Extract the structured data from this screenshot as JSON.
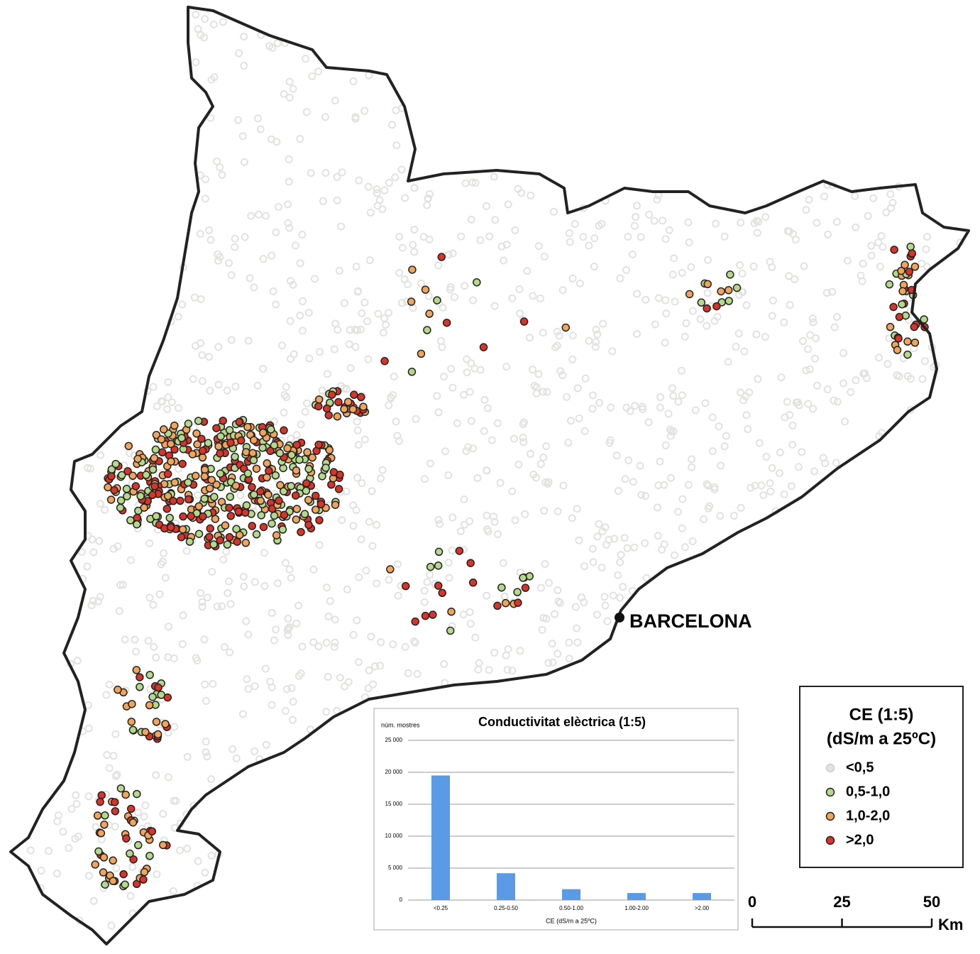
{
  "map": {
    "city_label": "BARCELONA"
  },
  "legend": {
    "title_line1": "CE (1:5)",
    "title_line2": "(dS/m a 25ºC)",
    "items": [
      {
        "label": "<0,5",
        "color": "#e2e2e0"
      },
      {
        "label": "0,5-1,0",
        "color": "#b5d98a"
      },
      {
        "label": "1,0-2,0",
        "color": "#f0a45c"
      },
      {
        "label": ">2,0",
        "color": "#d8342a"
      }
    ]
  },
  "scale": {
    "ticks": [
      0,
      25,
      50
    ],
    "unit": "Km"
  },
  "chart_data": {
    "type": "bar",
    "title": "Conductivitat elèctrica  (1:5)",
    "y_label": "núm. mostres",
    "x_label": "CE (dS/m a 25ºC)",
    "categories": [
      "<0.25",
      "0.25-0.50",
      "0.50-1.00",
      "1.00-2.00",
      ">2.00"
    ],
    "values": [
      19500,
      4200,
      1700,
      1100,
      1100
    ],
    "color": "#5b9be6",
    "ylim": [
      0,
      25000
    ],
    "yticks": [
      0,
      {
        "value": 5000,
        "label": "5 000"
      },
      {
        "value": 10000,
        "label": "10 000"
      },
      {
        "value": 15000,
        "label": "15 000"
      },
      {
        "value": 20000,
        "label": "20 000"
      },
      {
        "value": 25000,
        "label": "25 000"
      }
    ],
    "grid": true
  }
}
